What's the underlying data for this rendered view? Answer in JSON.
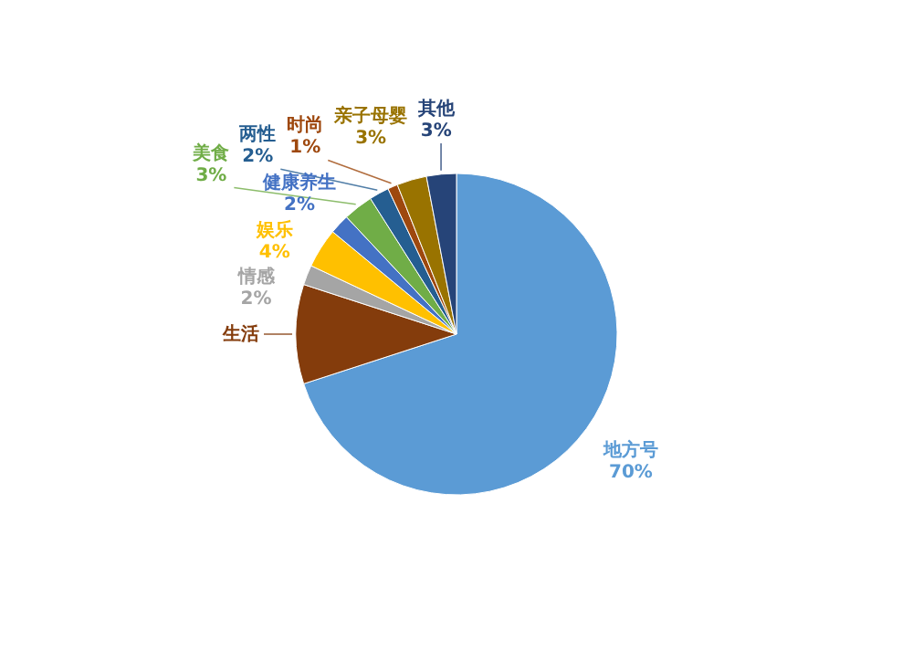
{
  "chart_data": {
    "type": "pie",
    "categories": [
      "地方号",
      "生活",
      "情感",
      "娱乐",
      "健康养生",
      "美食",
      "两性",
      "时尚",
      "亲子母婴",
      "其他"
    ],
    "values": [
      70,
      10,
      2,
      4,
      2,
      3,
      2,
      1,
      3,
      3
    ],
    "value_labels": [
      "70%",
      null,
      "2%",
      "4%",
      "2%",
      "3%",
      "2%",
      "1%",
      "3%",
      "3%"
    ],
    "colors": [
      "#5b9bd5",
      "#843c0c",
      "#a5a5a5",
      "#ffc000",
      "#4472c4",
      "#70ad47",
      "#255e91",
      "#9e480e",
      "#997300",
      "#264478"
    ]
  }
}
